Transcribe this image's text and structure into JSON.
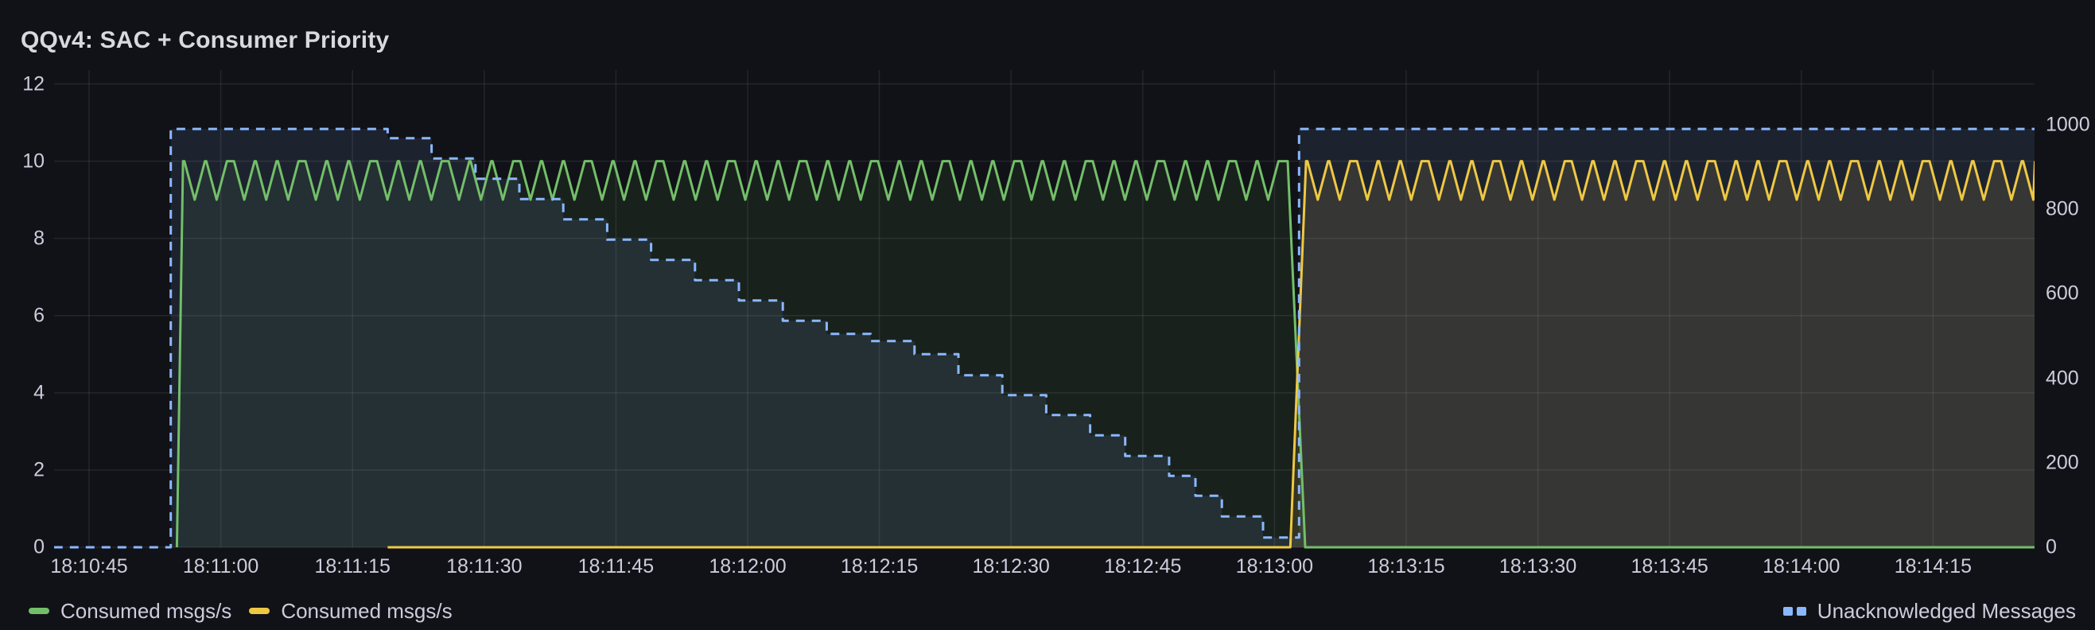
{
  "panel": {
    "title": "QQv4: SAC + Consumer Priority"
  },
  "colors": {
    "background": "#111217",
    "text": "#CCCCDC",
    "grid": "rgba(204,204,220,0.10)",
    "green": "#73BF69",
    "yellow": "#EFC843",
    "blue": "#8AB8FF"
  },
  "legend": {
    "left_items": [
      {
        "label": "Consumed msgs/s",
        "color": "#73BF69",
        "swatch": "line"
      },
      {
        "label": "Consumed msgs/s",
        "color": "#EFC843",
        "swatch": "line"
      }
    ],
    "right_items": [
      {
        "label": "Unacknowledged Messages",
        "color": "#8AB8FF",
        "swatch": "dashes"
      }
    ]
  },
  "axes": {
    "y_left": {
      "labels": [
        "0",
        "2",
        "4",
        "6",
        "8",
        "10",
        "12"
      ],
      "values": [
        0,
        2,
        4,
        6,
        8,
        10,
        12
      ]
    },
    "y_right": {
      "labels": [
        "0",
        "200",
        "400",
        "600",
        "800",
        "1000"
      ],
      "values": [
        0,
        200,
        400,
        600,
        800,
        1000
      ]
    },
    "x": {
      "time_unit": "seconds after 18:10:00",
      "ticks": [
        {
          "t": 45,
          "label": "18:10:45"
        },
        {
          "t": 60,
          "label": "18:11:00"
        },
        {
          "t": 75,
          "label": "18:11:15"
        },
        {
          "t": 90,
          "label": "18:11:30"
        },
        {
          "t": 105,
          "label": "18:11:45"
        },
        {
          "t": 120,
          "label": "18:12:00"
        },
        {
          "t": 135,
          "label": "18:12:15"
        },
        {
          "t": 150,
          "label": "18:12:30"
        },
        {
          "t": 165,
          "label": "18:12:45"
        },
        {
          "t": 180,
          "label": "18:13:00"
        },
        {
          "t": 195,
          "label": "18:13:15"
        },
        {
          "t": 210,
          "label": "18:13:30"
        },
        {
          "t": 225,
          "label": "18:13:45"
        },
        {
          "t": 240,
          "label": "18:14:00"
        },
        {
          "t": 255,
          "label": "18:14:15"
        }
      ]
    }
  },
  "chart_data": {
    "type": "line",
    "title": "QQv4: SAC + Consumer Priority",
    "x_domain": [
      41,
      266.6
    ],
    "y_left_range": [
      0,
      12.1
    ],
    "y_right_range": [
      0,
      1118
    ],
    "grid": true,
    "legend_position": "bottom",
    "series": [
      {
        "name": "Consumed msgs/s",
        "color": "#73BF69",
        "axis": "left",
        "style": "solid",
        "fill_opacity": 0.09,
        "anchors": [
          [
            55.0,
            0
          ],
          [
            55.7,
            10
          ]
        ],
        "zigzag": {
          "from": 55.7,
          "to": 181.5,
          "min": 9,
          "max": 10,
          "period": 2.35
        },
        "anchors_post": [
          [
            183.5,
            0
          ],
          [
            266.6,
            0
          ]
        ]
      },
      {
        "name": "Consumed msgs/s",
        "color": "#EFC843",
        "axis": "left",
        "style": "solid",
        "fill_opacity": 0.13,
        "anchors": [
          [
            79,
            0
          ],
          [
            181.8,
            0
          ],
          [
            183.6,
            10
          ]
        ],
        "zigzag": {
          "from": 183.6,
          "to": 266.6,
          "min": 9,
          "max": 10,
          "period": 2.35
        },
        "anchors_post": []
      },
      {
        "name": "Unacknowledged Messages",
        "color": "#8AB8FF",
        "axis": "right",
        "style": "dashed",
        "fill_opacity": 0.1,
        "steps": [
          [
            41,
            0
          ],
          [
            54.3,
            990
          ],
          [
            79,
            968
          ],
          [
            84,
            920
          ],
          [
            89,
            872
          ],
          [
            94,
            824
          ],
          [
            99,
            776
          ],
          [
            104,
            728
          ],
          [
            109,
            680
          ],
          [
            114,
            632
          ],
          [
            119,
            584
          ],
          [
            124,
            536
          ],
          [
            129,
            505
          ],
          [
            134,
            488
          ],
          [
            139,
            457
          ],
          [
            144,
            407
          ],
          [
            149,
            360
          ],
          [
            154,
            313
          ],
          [
            159,
            265
          ],
          [
            163,
            216
          ],
          [
            168,
            169
          ],
          [
            171,
            122
          ],
          [
            174,
            73
          ],
          [
            178.7,
            23
          ],
          [
            182.8,
            990
          ]
        ],
        "end": 266.6
      }
    ]
  }
}
